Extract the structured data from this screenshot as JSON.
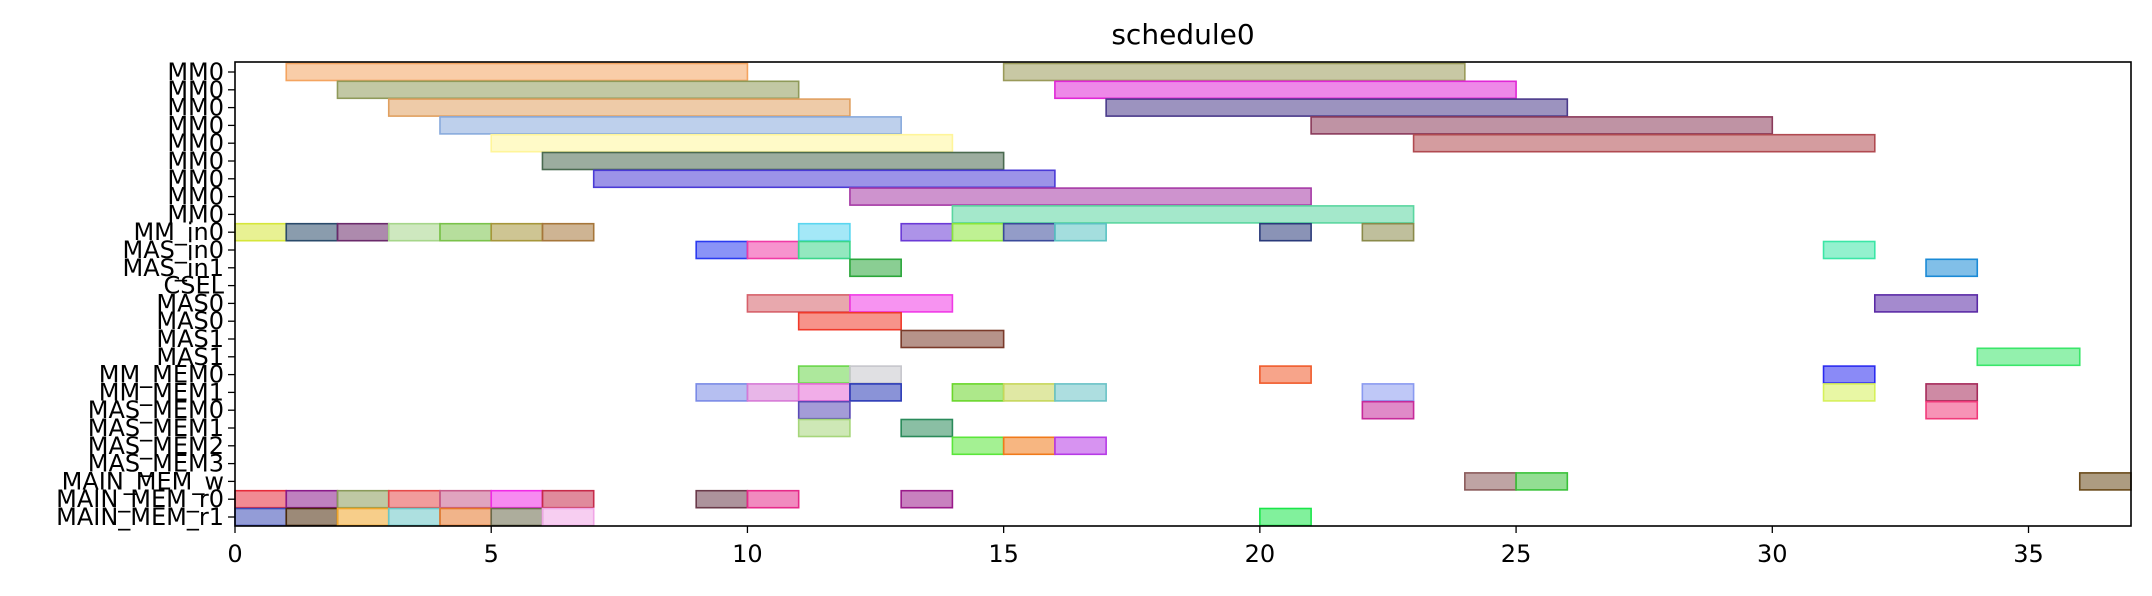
{
  "chart_data": {
    "type": "gantt",
    "title": "schedule0",
    "xlabel": "",
    "ylabel": "",
    "xlim": [
      0,
      37
    ],
    "xticks": [
      0,
      5,
      10,
      15,
      20,
      25,
      30,
      35
    ],
    "xtick_labels": [
      "0",
      "5",
      "10",
      "15",
      "20",
      "25",
      "30",
      "35"
    ],
    "grid": false,
    "rows": [
      "MM0",
      "MM0",
      "MM0",
      "MM0",
      "MM0",
      "MM0",
      "MM0",
      "MM0",
      "MM0",
      "MM_in0",
      "MAS_in0",
      "MAS_in1",
      "CSEL",
      "MAS0",
      "MAS0",
      "MAS1",
      "MAS1",
      "MM_MEM0",
      "MM_MEM1",
      "MAS_MEM0",
      "MAS_MEM1",
      "MAS_MEM2",
      "MAS_MEM3",
      "MAIN_MEM_w",
      "MAIN_MEM_r0",
      "MAIN_MEM_r1"
    ],
    "bars": [
      {
        "row": 0,
        "start": 1,
        "end": 10,
        "color": "#f4a460"
      },
      {
        "row": 0,
        "start": 15,
        "end": 24,
        "color": "#9a9a5a"
      },
      {
        "row": 1,
        "start": 2,
        "end": 11,
        "color": "#8f9a5a"
      },
      {
        "row": 1,
        "start": 16,
        "end": 25,
        "color": "#e026d6"
      },
      {
        "row": 2,
        "start": 3,
        "end": 12,
        "color": "#e0a060"
      },
      {
        "row": 2,
        "start": 17,
        "end": 26,
        "color": "#4a3a8a"
      },
      {
        "row": 3,
        "start": 4,
        "end": 13,
        "color": "#88aadd"
      },
      {
        "row": 3,
        "start": 21,
        "end": 30,
        "color": "#8a3a5a"
      },
      {
        "row": 4,
        "start": 5,
        "end": 14,
        "color": "#fff59a"
      },
      {
        "row": 4,
        "start": 23,
        "end": 32,
        "color": "#b04a50"
      },
      {
        "row": 5,
        "start": 6,
        "end": 15,
        "color": "#4a6a50"
      },
      {
        "row": 6,
        "start": 7,
        "end": 16,
        "color": "#4a3ad6"
      },
      {
        "row": 7,
        "start": 12,
        "end": 21,
        "color": "#a63aa6"
      },
      {
        "row": 8,
        "start": 14,
        "end": 23,
        "color": "#5ad6a0"
      },
      {
        "row": 9,
        "start": 0,
        "end": 1,
        "color": "#d6e63a"
      },
      {
        "row": 9,
        "start": 1,
        "end": 2,
        "color": "#2a4a6a"
      },
      {
        "row": 9,
        "start": 2,
        "end": 3,
        "color": "#6a2a6a"
      },
      {
        "row": 9,
        "start": 3,
        "end": 4,
        "color": "#a6d68a"
      },
      {
        "row": 9,
        "start": 4,
        "end": 5,
        "color": "#7ac24a"
      },
      {
        "row": 9,
        "start": 5,
        "end": 6,
        "color": "#a6963a"
      },
      {
        "row": 9,
        "start": 6,
        "end": 7,
        "color": "#a6763a"
      },
      {
        "row": 9,
        "start": 11,
        "end": 12,
        "color": "#5ad6f0"
      },
      {
        "row": 9,
        "start": 13,
        "end": 14,
        "color": "#6a3ad6"
      },
      {
        "row": 9,
        "start": 14,
        "end": 15,
        "color": "#8ae63a"
      },
      {
        "row": 9,
        "start": 15,
        "end": 16,
        "color": "#3a4a9a"
      },
      {
        "row": 9,
        "start": 16,
        "end": 17,
        "color": "#5ac2c2"
      },
      {
        "row": 9,
        "start": 20,
        "end": 21,
        "color": "#2a3a7a"
      },
      {
        "row": 9,
        "start": 22,
        "end": 23,
        "color": "#8a8a4a"
      },
      {
        "row": 10,
        "start": 9,
        "end": 10,
        "color": "#2a3af0"
      },
      {
        "row": 10,
        "start": 10,
        "end": 11,
        "color": "#f03aa6"
      },
      {
        "row": 10,
        "start": 11,
        "end": 12,
        "color": "#3ad68a"
      },
      {
        "row": 10,
        "start": 31,
        "end": 32,
        "color": "#3ae6a6"
      },
      {
        "row": 11,
        "start": 12,
        "end": 13,
        "color": "#2aa63a"
      },
      {
        "row": 11,
        "start": 33,
        "end": 34,
        "color": "#1a8ad6"
      },
      {
        "row": 13,
        "start": 10,
        "end": 12,
        "color": "#d6606a"
      },
      {
        "row": 13,
        "start": 12,
        "end": 14,
        "color": "#f03ae6"
      },
      {
        "row": 13,
        "start": 32,
        "end": 34,
        "color": "#5a2aa6"
      },
      {
        "row": 14,
        "start": 11,
        "end": 13,
        "color": "#f03a2a"
      },
      {
        "row": 15,
        "start": 13,
        "end": 15,
        "color": "#7a3a2a"
      },
      {
        "row": 16,
        "start": 34,
        "end": 36,
        "color": "#3ae66a"
      },
      {
        "row": 17,
        "start": 11,
        "end": 12,
        "color": "#6ad64a"
      },
      {
        "row": 17,
        "start": 12,
        "end": 13,
        "color": "#c6c6cc"
      },
      {
        "row": 17,
        "start": 20,
        "end": 21,
        "color": "#f05a2a"
      },
      {
        "row": 17,
        "start": 31,
        "end": 32,
        "color": "#2a2af0"
      },
      {
        "row": 18,
        "start": 9,
        "end": 10,
        "color": "#7a8ae6"
      },
      {
        "row": 18,
        "start": 10,
        "end": 11,
        "color": "#d67ad6"
      },
      {
        "row": 18,
        "start": 11,
        "end": 12,
        "color": "#e66ad6"
      },
      {
        "row": 18,
        "start": 12,
        "end": 13,
        "color": "#2a3ab6"
      },
      {
        "row": 18,
        "start": 14,
        "end": 15,
        "color": "#6ad62a"
      },
      {
        "row": 18,
        "start": 15,
        "end": 16,
        "color": "#c6d65a"
      },
      {
        "row": 18,
        "start": 16,
        "end": 17,
        "color": "#6ac2c6"
      },
      {
        "row": 18,
        "start": 22,
        "end": 23,
        "color": "#8a9af0"
      },
      {
        "row": 18,
        "start": 31,
        "end": 32,
        "color": "#d6f05a"
      },
      {
        "row": 18,
        "start": 33,
        "end": 34,
        "color": "#a62a5a"
      },
      {
        "row": 19,
        "start": 11,
        "end": 12,
        "color": "#5a4ab6"
      },
      {
        "row": 19,
        "start": 22,
        "end": 23,
        "color": "#c62a9a"
      },
      {
        "row": 19,
        "start": 33,
        "end": 34,
        "color": "#f03a7a"
      },
      {
        "row": 20,
        "start": 11,
        "end": 12,
        "color": "#a6d67a"
      },
      {
        "row": 20,
        "start": 13,
        "end": 14,
        "color": "#2a8a5a"
      },
      {
        "row": 21,
        "start": 14,
        "end": 15,
        "color": "#5ae63a"
      },
      {
        "row": 21,
        "start": 15,
        "end": 16,
        "color": "#f07a1a"
      },
      {
        "row": 21,
        "start": 16,
        "end": 17,
        "color": "#b63ae6"
      },
      {
        "row": 23,
        "start": 24,
        "end": 25,
        "color": "#8a5a5a"
      },
      {
        "row": 23,
        "start": 25,
        "end": 26,
        "color": "#3ac23a"
      },
      {
        "row": 23,
        "start": 36,
        "end": 37,
        "color": "#6a4a1a"
      },
      {
        "row": 24,
        "start": 0,
        "end": 1,
        "color": "#e62a3a"
      },
      {
        "row": 24,
        "start": 1,
        "end": 2,
        "color": "#8a1a8a"
      },
      {
        "row": 24,
        "start": 2,
        "end": 3,
        "color": "#8a9a5a"
      },
      {
        "row": 24,
        "start": 3,
        "end": 4,
        "color": "#e64a4a"
      },
      {
        "row": 24,
        "start": 4,
        "end": 5,
        "color": "#c65a8a"
      },
      {
        "row": 24,
        "start": 5,
        "end": 6,
        "color": "#f02ae6"
      },
      {
        "row": 24,
        "start": 6,
        "end": 7,
        "color": "#c62a4a"
      },
      {
        "row": 24,
        "start": 9,
        "end": 10,
        "color": "#6a3a4a"
      },
      {
        "row": 24,
        "start": 10,
        "end": 11,
        "color": "#e62a8a"
      },
      {
        "row": 24,
        "start": 13,
        "end": 14,
        "color": "#9a1a8a"
      },
      {
        "row": 25,
        "start": 0,
        "end": 1,
        "color": "#3a4ab6"
      },
      {
        "row": 25,
        "start": 1,
        "end": 2,
        "color": "#4a2a0a"
      },
      {
        "row": 25,
        "start": 2,
        "end": 3,
        "color": "#f0a62a"
      },
      {
        "row": 25,
        "start": 3,
        "end": 4,
        "color": "#6ac6c6"
      },
      {
        "row": 25,
        "start": 4,
        "end": 5,
        "color": "#e6762a"
      },
      {
        "row": 25,
        "start": 5,
        "end": 6,
        "color": "#6a6a4a"
      },
      {
        "row": 25,
        "start": 6,
        "end": 7,
        "color": "#f0a6e6"
      },
      {
        "row": 25,
        "start": 20,
        "end": 21,
        "color": "#1ae64a"
      }
    ]
  }
}
